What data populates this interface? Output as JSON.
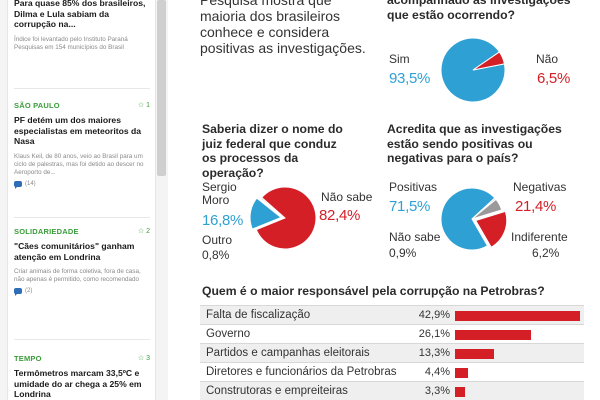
{
  "sidebar": {
    "top_item": {
      "headline": "Para quase 85% dos brasileiros, Dilma e Lula sabiam da corrupção na...",
      "summary": "Índice foi levantado pelo Instituto Paraná Pesquisas em 154 municípios do Brasil"
    },
    "items": [
      {
        "category": "São Paulo",
        "count": "1",
        "headline": "PF detém um dos maiores especialistas em meteoritos da Nasa",
        "summary": "Klaus Keil, de 80 anos, veio ao Brasil para um ciclo de palestras, mas foi detido ao descer no Aeroporto de...",
        "comments": "(14)"
      },
      {
        "category": "Solidariedade",
        "count": "2",
        "headline": "\"Cães comunitários\" ganham atenção em Londrina",
        "summary": "Criar animais de forma coletiva, fora de casa, não apenas é permitido, como recomendado",
        "comments": "(2)"
      },
      {
        "category": "Tempo",
        "count": "3",
        "headline": "Termômetros marcam 33,5ºC e umidade do ar chega a 25% em Londrina"
      }
    ]
  },
  "infographic": {
    "intro": "Pesquisa mostra que maioria dos brasileiros conhece e considera positivas as investigações.",
    "q1": {
      "question": "acompanhado as investigações que estão ocorrendo?",
      "yes_label": "Sim",
      "yes_value": "93,5%",
      "no_label": "Não",
      "no_value": "6,5%",
      "slices": [
        93.5,
        6.5
      ],
      "colors": [
        "#2fa0d4",
        "#d41f27"
      ]
    },
    "q2": {
      "question": "Saberia dizer o nome do juiz federal que conduz os processos da operação?",
      "moro_label": "Sergio Moro",
      "moro_value": "16,8%",
      "nao_sabe_label": "Não sabe",
      "nao_sabe_value": "82,4%",
      "outro_label": "Outro",
      "outro_value": "0,8%",
      "slices": [
        16.8,
        0.8,
        82.4
      ],
      "colors": [
        "#2fa0d4",
        "#cccccc",
        "#d41f27"
      ]
    },
    "q3": {
      "question": "Acredita que as investigações estão sendo positivas ou negativas para o país?",
      "positivas_label": "Positivas",
      "positivas_value": "71,5%",
      "negativas_label": "Negativas",
      "negativas_value": "21,4%",
      "nao_sabe_label": "Não sabe",
      "nao_sabe_value": "0,9%",
      "indiferente_label": "Indiferente",
      "indiferente_value": "6,2%",
      "slices": [
        71.5,
        0.9,
        6.2,
        21.4
      ],
      "colors": [
        "#2fa0d4",
        "#cccccc",
        "#9a9a9a",
        "#d41f27"
      ]
    },
    "responsibility": {
      "title": "Quem é o maior responsável pela corrupção na Petrobras?",
      "max": 42.9,
      "color": "#d41f27",
      "rows": [
        {
          "label": "Falta de fiscalização",
          "value": "42,9%",
          "num": 42.9
        },
        {
          "label": "Governo",
          "value": "26,1%",
          "num": 26.1
        },
        {
          "label": "Partidos e campanhas eleitorais",
          "value": "13,3%",
          "num": 13.3
        },
        {
          "label": "Diretores e funcionários da Petrobras",
          "value": "4,4%",
          "num": 4.4
        },
        {
          "label": "Construtoras e empreiteiras",
          "value": "3,3%",
          "num": 3.3
        }
      ]
    }
  },
  "chart_data": [
    {
      "type": "pie",
      "title": "acompanhado as investigações que estão ocorrendo?",
      "categories": [
        "Sim",
        "Não"
      ],
      "values": [
        93.5,
        6.5
      ]
    },
    {
      "type": "pie",
      "title": "Saberia dizer o nome do juiz federal que conduz os processos da operação?",
      "categories": [
        "Sergio Moro",
        "Outro",
        "Não sabe"
      ],
      "values": [
        16.8,
        0.8,
        82.4
      ]
    },
    {
      "type": "pie",
      "title": "Acredita que as investigações estão sendo positivas ou negativas para o país?",
      "categories": [
        "Positivas",
        "Não sabe",
        "Indiferente",
        "Negativas"
      ],
      "values": [
        71.5,
        0.9,
        6.2,
        21.4
      ]
    },
    {
      "type": "bar",
      "title": "Quem é o maior responsável pela corrupção na Petrobras?",
      "categories": [
        "Falta de fiscalização",
        "Governo",
        "Partidos e campanhas eleitorais",
        "Diretores e funcionários da Petrobras",
        "Construtoras e empreiteiras"
      ],
      "values": [
        42.9,
        26.1,
        13.3,
        4.4,
        3.3
      ],
      "ylabel": "%"
    }
  ]
}
